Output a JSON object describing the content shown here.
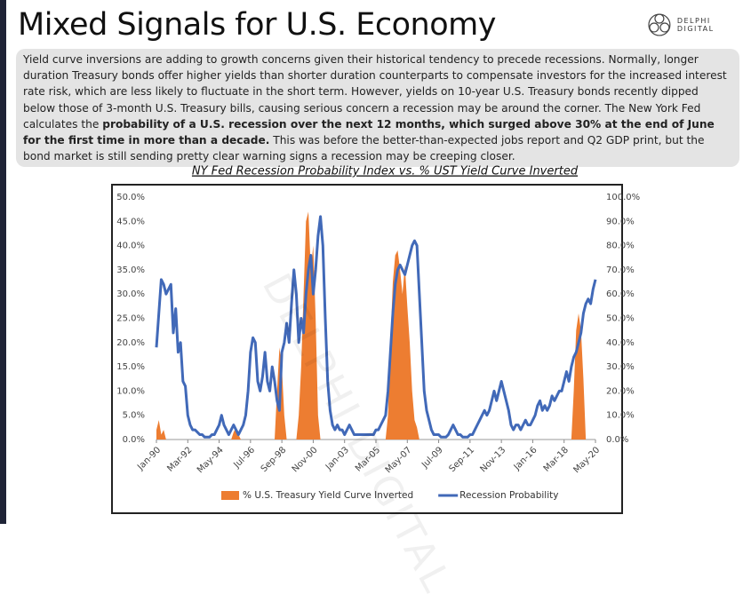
{
  "title": "Mixed Signals for U.S. Economy",
  "logo": "DELPHI DIGITAL",
  "paragraph": {
    "parts": [
      "Yield curve inversions are adding to growth concerns given their historical tendency to precede recessions. Normally, longer duration Treasury bonds offer higher yields than shorter duration counterparts to compensate investors for the increased interest rate risk, which are less likely to fluctuate in the short term. However, yields on 10-year U.S. Treasury bonds recently dipped below those of 3-month U.S. Treasury bills, causing serious concern a recession may be around the corner. The New York Fed calculates the ",
      "probability of a U.S. recession over the next 12 months, which surged above 30% at the end of June for the first time in more than a decade.",
      " This was before the better-than-expected jobs report and Q2 GDP print, but the bond market is still sending pretty clear warning signs a recession may be creeping closer."
    ]
  },
  "chart_data": {
    "type": "combo",
    "title": "NY Fed Recession Probability Index vs. % UST Yield Curve Inverted",
    "categories": [
      "Jan-90",
      null,
      null,
      null,
      null,
      null,
      null,
      null,
      null,
      null,
      null,
      null,
      null,
      "Mar-92",
      null,
      null,
      null,
      null,
      null,
      null,
      null,
      null,
      null,
      null,
      null,
      null,
      "May-94",
      null,
      null,
      null,
      null,
      null,
      null,
      null,
      null,
      null,
      null,
      null,
      null,
      "Jul-96",
      null,
      null,
      null,
      null,
      null,
      null,
      null,
      null,
      null,
      null,
      null,
      null,
      "Sep-98",
      null,
      null,
      null,
      null,
      null,
      null,
      null,
      null,
      null,
      null,
      null,
      null,
      "Nov-00",
      null,
      null,
      null,
      null,
      null,
      null,
      null,
      null,
      null,
      null,
      null,
      null,
      "Jan-03",
      null,
      null,
      null,
      null,
      null,
      null,
      null,
      null,
      null,
      null,
      null,
      null,
      "Mar-05",
      null,
      null,
      null,
      null,
      null,
      null,
      null,
      null,
      null,
      null,
      null,
      null,
      "May-07",
      null,
      null,
      null,
      null,
      null,
      null,
      null,
      null,
      null,
      null,
      null,
      null,
      "Jul-09",
      null,
      null,
      null,
      null,
      null,
      null,
      null,
      null,
      null,
      null,
      null,
      null,
      "Sep-11",
      null,
      null,
      null,
      null,
      null,
      null,
      null,
      null,
      null,
      null,
      null,
      null,
      "Nov-13",
      null,
      null,
      null,
      null,
      null,
      null,
      null,
      null,
      null,
      null,
      null,
      null,
      "Jan-16",
      null,
      null,
      null,
      null,
      null,
      null,
      null,
      null,
      null,
      null,
      null,
      null,
      "Mar-18",
      null,
      null,
      null,
      null,
      null,
      null,
      null,
      null,
      null,
      null,
      null,
      null,
      "May-20"
    ],
    "series": [
      {
        "name": "% U.S. Treasury Yield Curve Inverted",
        "type": "area",
        "axis": "y2",
        "color": "#ed7d31",
        "values": [
          4,
          8,
          2,
          4,
          0,
          0,
          0,
          0,
          0,
          0,
          0,
          0,
          0,
          0,
          0,
          0,
          0,
          0,
          0,
          0,
          0,
          0,
          0,
          0,
          0,
          0,
          0,
          0,
          0,
          0,
          0,
          0,
          3,
          5,
          2,
          0,
          0,
          0,
          0,
          0,
          0,
          0,
          0,
          0,
          0,
          0,
          0,
          0,
          0,
          0,
          20,
          38,
          30,
          10,
          0,
          0,
          0,
          0,
          0,
          10,
          30,
          60,
          90,
          94,
          70,
          80,
          50,
          10,
          0,
          0,
          0,
          0,
          0,
          0,
          0,
          0,
          0,
          0,
          0,
          0,
          0,
          0,
          0,
          0,
          0,
          0,
          0,
          0,
          0,
          0,
          0,
          0,
          0,
          0,
          0,
          0,
          10,
          40,
          65,
          76,
          78,
          70,
          60,
          72,
          55,
          40,
          20,
          8,
          5,
          0,
          0,
          0,
          0,
          0,
          0,
          0,
          0,
          0,
          0,
          0,
          0,
          0,
          0,
          0,
          0,
          0,
          0,
          0,
          0,
          0,
          0,
          0,
          0,
          0,
          0,
          0,
          0,
          0,
          0,
          0,
          0,
          0,
          0,
          0,
          0,
          0,
          0,
          0,
          0,
          0,
          0,
          0,
          0,
          0,
          0,
          0,
          0,
          0,
          0,
          0,
          0,
          0,
          0,
          0,
          0,
          0,
          0,
          0,
          0,
          0,
          0,
          0,
          0,
          20,
          45,
          52,
          45,
          25,
          0,
          0,
          0,
          0,
          0
        ]
      },
      {
        "name": "Recession Probability",
        "type": "line",
        "color": "#4169b8",
        "values": [
          19,
          26,
          33,
          32,
          30,
          31,
          32,
          22,
          27,
          18,
          20,
          12,
          11,
          5,
          3,
          2,
          2,
          1.5,
          1,
          1,
          0.5,
          0.5,
          0.5,
          1,
          1,
          2,
          3,
          5,
          3,
          2,
          1,
          2,
          3,
          2,
          1,
          2,
          3,
          5,
          10,
          18,
          21,
          20,
          12,
          10,
          13,
          18,
          12,
          10,
          15,
          12,
          8,
          6,
          18,
          20,
          24,
          20,
          28,
          35,
          30,
          20,
          25,
          22,
          30,
          35,
          38,
          30,
          35,
          42,
          46,
          40,
          25,
          12,
          6,
          3,
          2,
          3,
          2,
          2,
          1,
          2,
          3,
          2,
          1,
          1,
          1,
          1,
          1,
          1,
          1,
          1,
          1,
          2,
          2,
          3,
          4,
          5,
          10,
          18,
          26,
          32,
          35,
          36,
          35,
          34,
          36,
          38,
          40,
          41,
          40,
          30,
          20,
          10,
          6,
          4,
          2,
          1,
          1,
          1,
          0.5,
          0.5,
          0.5,
          1,
          2,
          3,
          2,
          1,
          1,
          0.5,
          0.5,
          0.5,
          1,
          1,
          2,
          3,
          4,
          5,
          6,
          5,
          6,
          8,
          10,
          8,
          10,
          12,
          10,
          8,
          6,
          3,
          2,
          3,
          3,
          2,
          3,
          4,
          3,
          3,
          4,
          5,
          7,
          8,
          6,
          7,
          6,
          7,
          9,
          8,
          9,
          10,
          10,
          12,
          14,
          12,
          15,
          17,
          18,
          20,
          22,
          26,
          28,
          29,
          28,
          31,
          33
        ]
      }
    ],
    "ylim": [
      0,
      50
    ],
    "yticks": [
      {
        "value": 0,
        "label": "0.0%"
      },
      {
        "value": 5,
        "label": "5.0%"
      },
      {
        "value": 10,
        "label": "10.0%"
      },
      {
        "value": 15,
        "label": "15.0%"
      },
      {
        "value": 20,
        "label": "20.0%"
      },
      {
        "value": 25,
        "label": "25.0%"
      },
      {
        "value": 30,
        "label": "30.0%"
      },
      {
        "value": 35,
        "label": "35.0%"
      },
      {
        "value": 40,
        "label": "40.0%"
      },
      {
        "value": 45,
        "label": "45.0%"
      },
      {
        "value": 50,
        "label": "50.0%"
      }
    ],
    "y2lim": [
      0,
      100
    ],
    "y2ticks": [
      {
        "value": 0,
        "label": "0.0%"
      },
      {
        "value": 10,
        "label": "10.0%"
      },
      {
        "value": 20,
        "label": "20.0%"
      },
      {
        "value": 30,
        "label": "30.0%"
      },
      {
        "value": 40,
        "label": "40.0%"
      },
      {
        "value": 50,
        "label": "50.0%"
      },
      {
        "value": 60,
        "label": "60.0%"
      },
      {
        "value": 70,
        "label": "70.0%"
      },
      {
        "value": 80,
        "label": "80.0%"
      },
      {
        "value": 90,
        "label": "90.0%"
      },
      {
        "value": 100,
        "label": "100.0%"
      }
    ],
    "legend": "bottom"
  }
}
